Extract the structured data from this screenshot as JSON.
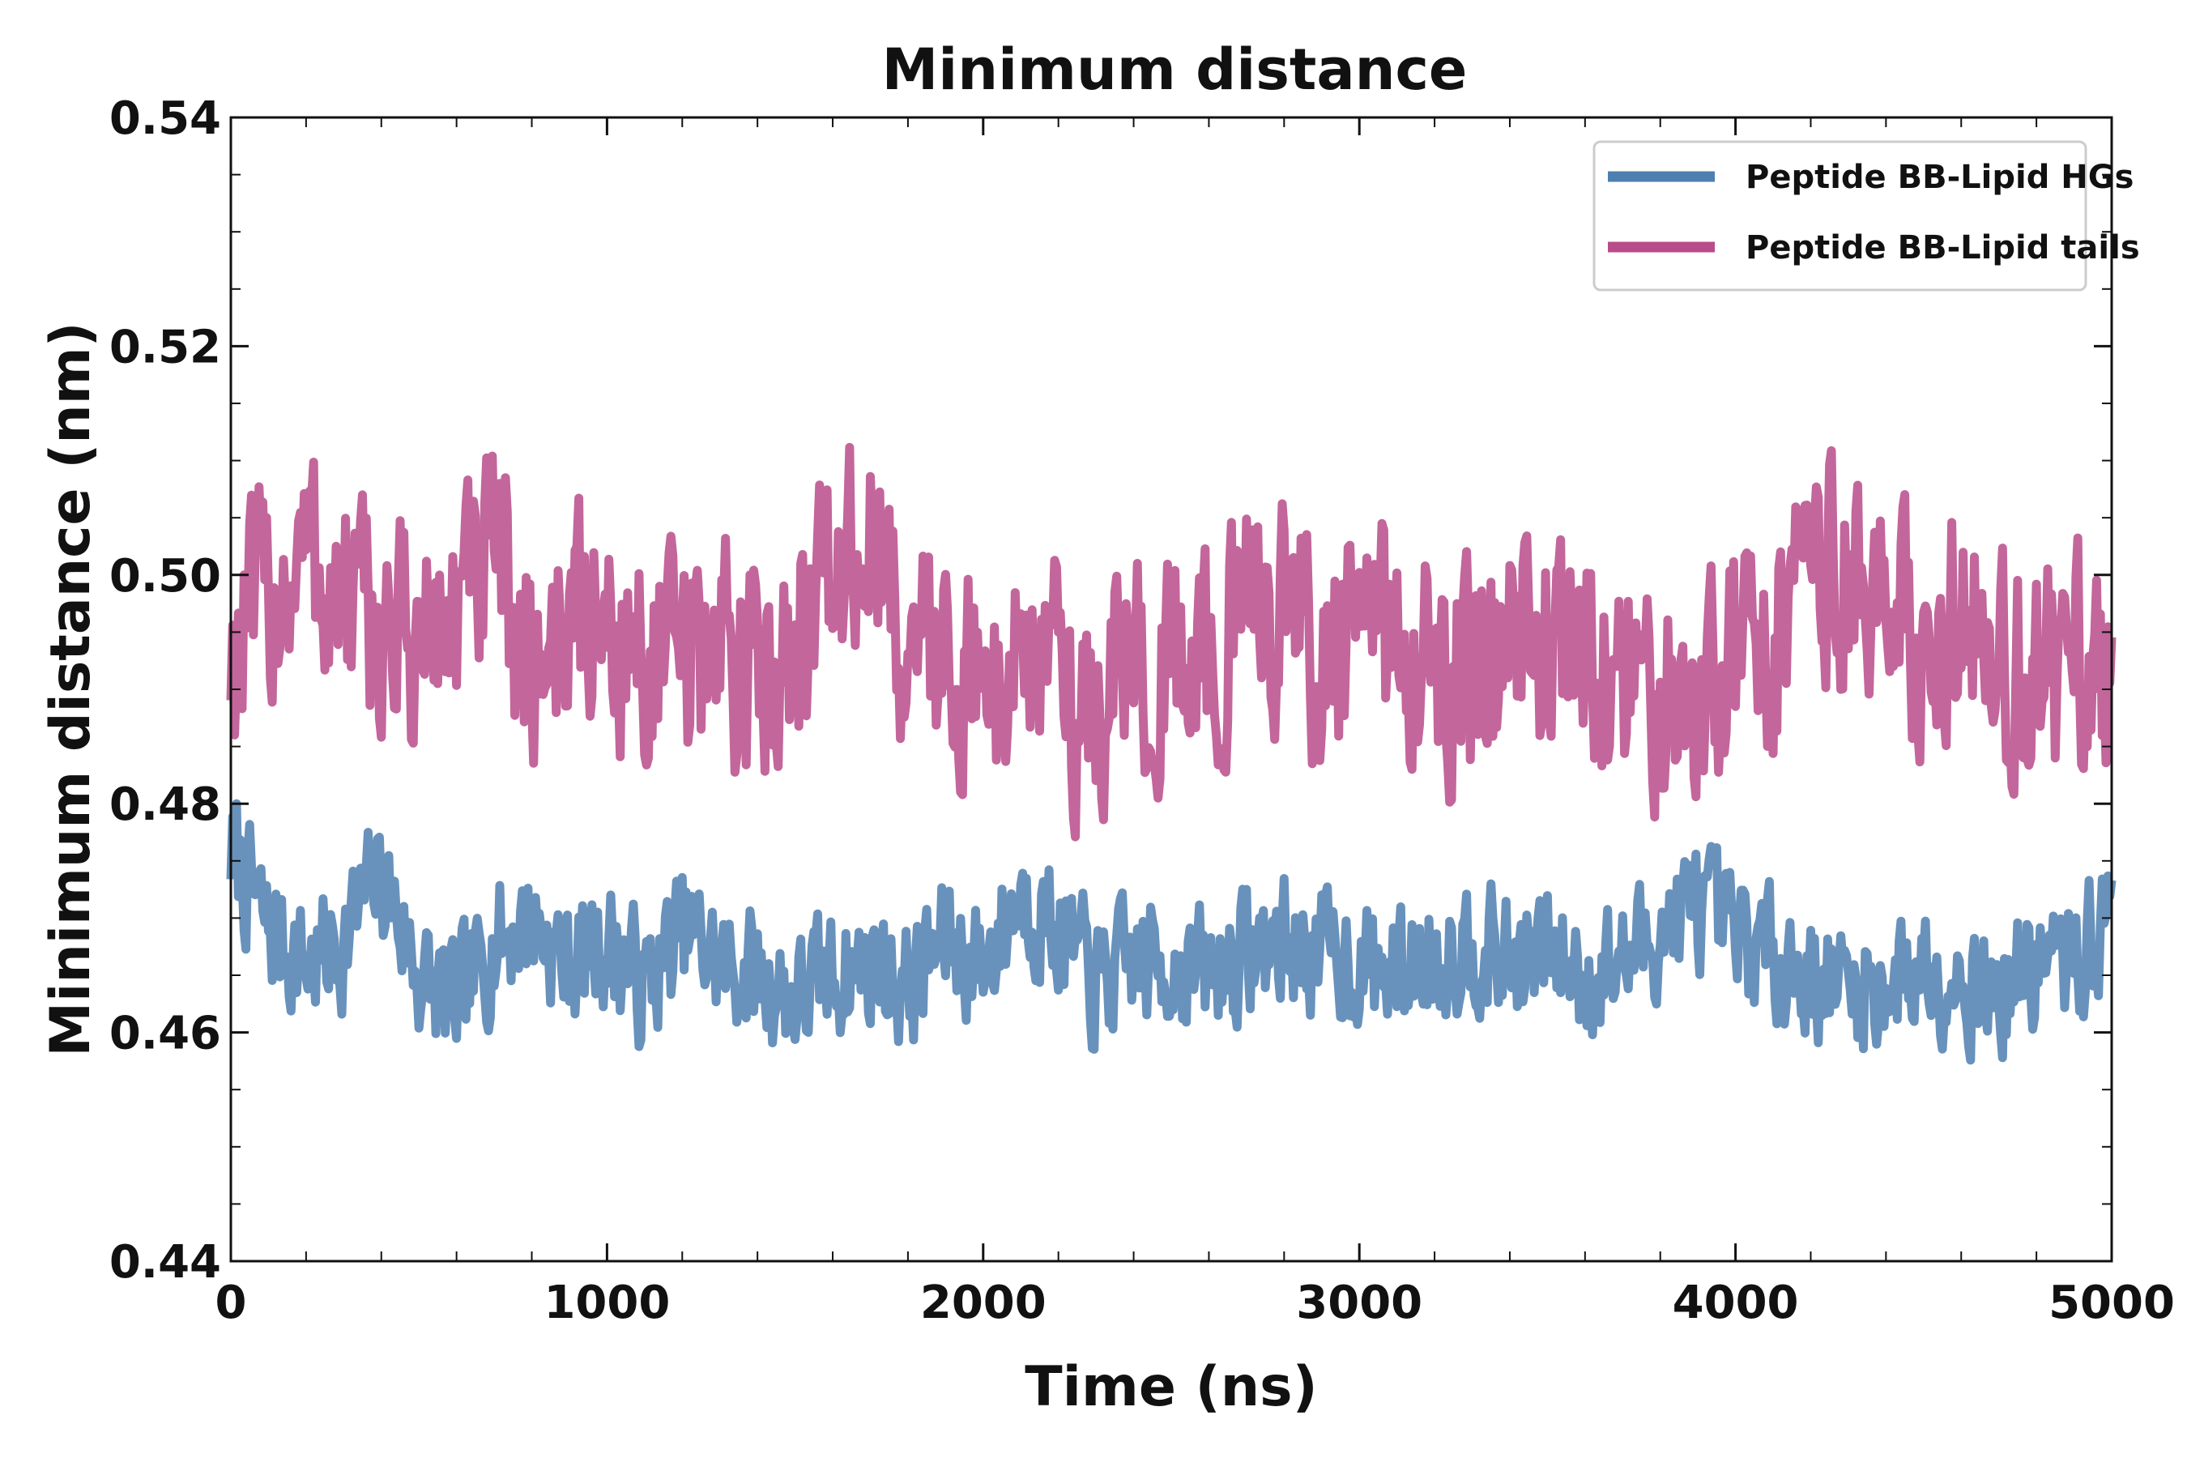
{
  "chart_data": {
    "type": "line",
    "title": "Minimum distance",
    "xlabel": "Time (ns)",
    "ylabel": "Minimum distance (nm)",
    "xlim": [
      0,
      5000
    ],
    "ylim": [
      0.44,
      0.54
    ],
    "xticks": [
      "0",
      "1000",
      "2000",
      "3000",
      "4000",
      "5000"
    ],
    "yticks": [
      "0.44",
      "0.46",
      "0.48",
      "0.50",
      "0.52",
      "0.54"
    ],
    "x_minor_step": 200,
    "y_minor_step": 0.005,
    "grid": false,
    "legend_position": "top-right",
    "series": [
      {
        "name": "Peptide BB-Lipid HGs",
        "color": "#4d7fb0",
        "x": [
          0,
          100,
          200,
          300,
          400,
          500,
          600,
          700,
          800,
          900,
          1000,
          1100,
          1200,
          1300,
          1400,
          1500,
          1600,
          1700,
          1800,
          1900,
          2000,
          2100,
          2200,
          2300,
          2400,
          2500,
          2600,
          2700,
          2800,
          2900,
          3000,
          3100,
          3200,
          3300,
          3400,
          3500,
          3600,
          3700,
          3800,
          3900,
          4000,
          4100,
          4200,
          4300,
          4400,
          4500,
          4600,
          4700,
          4800,
          4900,
          5000
        ],
        "values": [
          0.476,
          0.469,
          0.466,
          0.468,
          0.474,
          0.465,
          0.462,
          0.468,
          0.47,
          0.466,
          0.468,
          0.464,
          0.469,
          0.466,
          0.465,
          0.463,
          0.465,
          0.466,
          0.464,
          0.468,
          0.466,
          0.472,
          0.469,
          0.464,
          0.466,
          0.466,
          0.465,
          0.467,
          0.468,
          0.467,
          0.466,
          0.465,
          0.467,
          0.468,
          0.466,
          0.467,
          0.465,
          0.466,
          0.469,
          0.471,
          0.468,
          0.467,
          0.465,
          0.464,
          0.464,
          0.466,
          0.465,
          0.463,
          0.466,
          0.466,
          0.47
        ]
      },
      {
        "name": "Peptide BB-Lipid tails",
        "color": "#b84b8a",
        "x": [
          0,
          100,
          200,
          300,
          400,
          500,
          600,
          700,
          800,
          900,
          1000,
          1100,
          1200,
          1300,
          1400,
          1500,
          1600,
          1700,
          1800,
          1900,
          2000,
          2100,
          2200,
          2300,
          2400,
          2500,
          2600,
          2700,
          2800,
          2900,
          3000,
          3100,
          3200,
          3300,
          3400,
          3500,
          3600,
          3700,
          3800,
          3900,
          4000,
          4100,
          4200,
          4300,
          4400,
          4500,
          4600,
          4700,
          4800,
          4900,
          5000
        ],
        "values": [
          0.493,
          0.498,
          0.502,
          0.497,
          0.495,
          0.494,
          0.497,
          0.501,
          0.492,
          0.497,
          0.495,
          0.493,
          0.492,
          0.494,
          0.491,
          0.496,
          0.499,
          0.503,
          0.493,
          0.494,
          0.489,
          0.494,
          0.491,
          0.487,
          0.494,
          0.491,
          0.493,
          0.496,
          0.498,
          0.492,
          0.494,
          0.495,
          0.491,
          0.49,
          0.493,
          0.495,
          0.492,
          0.491,
          0.489,
          0.49,
          0.495,
          0.494,
          0.501,
          0.5,
          0.496,
          0.495,
          0.497,
          0.494,
          0.49,
          0.493,
          0.489
        ]
      }
    ]
  }
}
